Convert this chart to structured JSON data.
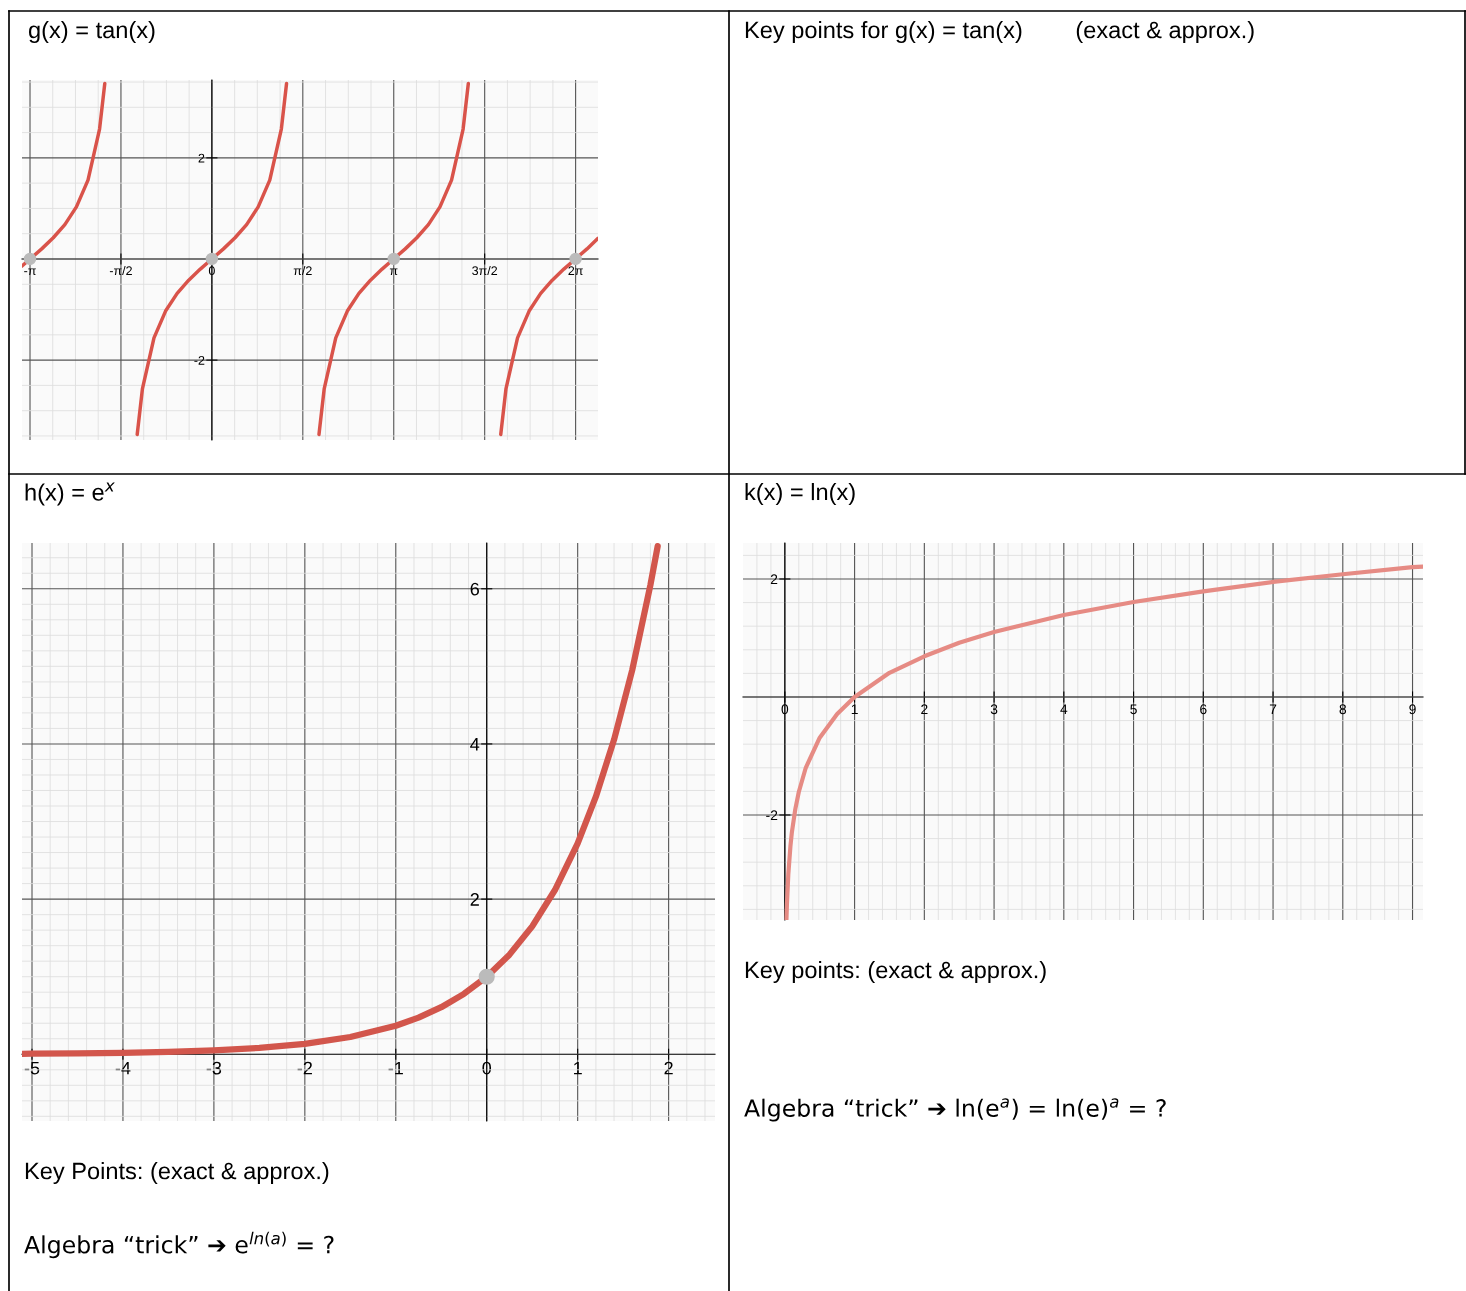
{
  "chart_data": [
    {
      "type": "line",
      "title": "g(x) = tan(x)",
      "annotations": [
        "Key points for g(x) = tan(x)        (exact & approx.)"
      ],
      "xlim": [
        -3.28,
        6.67
      ],
      "ylim": [
        -3.58,
        3.54
      ],
      "xticks": [
        {
          "value": -3.1416,
          "label": "-π"
        },
        {
          "value": -1.5708,
          "label": "-π/2"
        },
        0,
        {
          "value": 1.5708,
          "label": "π/2"
        },
        {
          "value": 3.1416,
          "label": "π"
        },
        {
          "value": 4.7124,
          "label": "3π/2"
        },
        {
          "value": 6.2832,
          "label": "2π"
        }
      ],
      "yticks": [
        -2,
        2
      ],
      "grid": true,
      "series": [
        {
          "color": "#d9534a",
          "x": [
            -3.28,
            -3.14,
            -2.94,
            -2.74,
            -2.54,
            -2.34,
            -2.14,
            -1.94,
            -1.85,
            -1.57,
            -1.29,
            -1.2,
            -1.0,
            -0.8,
            -0.6,
            -0.4,
            -0.2,
            0,
            0.2,
            0.4,
            0.6,
            0.8,
            1.0,
            1.2,
            1.29,
            1.57,
            1.85,
            1.94,
            2.14,
            2.34,
            2.54,
            2.74,
            2.94,
            3.14,
            3.34,
            3.54,
            3.74,
            3.94,
            4.14,
            4.34,
            4.43,
            4.71,
            4.99,
            5.08,
            5.28,
            5.48,
            5.68,
            5.88,
            6.08,
            6.28,
            6.48,
            6.67
          ],
          "values": [
            -0.14,
            0,
            0.2,
            0.42,
            0.68,
            1.03,
            1.56,
            2.57,
            3.47,
            null,
            -3.47,
            -2.57,
            -1.56,
            -1.03,
            -0.68,
            -0.42,
            -0.2,
            0,
            0.2,
            0.42,
            0.68,
            1.03,
            1.56,
            2.57,
            3.47,
            null,
            -3.47,
            -2.57,
            -1.56,
            -1.03,
            -0.68,
            -0.42,
            -0.2,
            0,
            0.2,
            0.42,
            0.68,
            1.03,
            1.56,
            2.57,
            3.47,
            null,
            -3.47,
            -2.57,
            -1.56,
            -1.03,
            -0.68,
            -0.42,
            -0.2,
            0,
            0.2,
            0.41
          ]
        },
        {
          "type": "scatter",
          "color": "#bbbbbb",
          "x": [
            -3.1416,
            0,
            3.1416,
            6.2832
          ],
          "values": [
            0,
            0,
            0,
            0
          ]
        }
      ]
    },
    {
      "type": "line",
      "title": "h(x) = e$^{x}$",
      "annotations": [
        "Key Points: (exact & approx.)",
        "Algebra “trick” ➔ e$^{ln(a)}$ = ?"
      ],
      "xlim": [
        -5.11,
        2.51
      ],
      "ylim": [
        -0.86,
        6.59
      ],
      "xticks": [
        -5,
        -4,
        -3,
        -2,
        -1,
        0,
        1,
        2
      ],
      "yticks": [
        2,
        4,
        6
      ],
      "grid": true,
      "series": [
        {
          "color": "#d2564c",
          "x": [
            -5.11,
            -5,
            -4.5,
            -4,
            -3.5,
            -3,
            -2.5,
            -2,
            -1.5,
            -1,
            -0.75,
            -0.5,
            -0.25,
            0,
            0.25,
            0.5,
            0.75,
            1,
            1.2,
            1.4,
            1.6,
            1.8,
            1.88
          ],
          "values": [
            0.006,
            0.007,
            0.011,
            0.018,
            0.03,
            0.05,
            0.082,
            0.135,
            0.223,
            0.368,
            0.472,
            0.607,
            0.779,
            1,
            1.284,
            1.649,
            2.117,
            2.718,
            3.32,
            4.055,
            4.953,
            6.05,
            6.55
          ]
        },
        {
          "type": "scatter",
          "color": "#bbbbbb",
          "x": [
            0
          ],
          "values": [
            1
          ]
        }
      ]
    },
    {
      "type": "line",
      "title": "k(x) = ln(x)",
      "annotations": [
        "Key points: (exact & approx.)",
        "Algebra “trick” ➔ ln(e$^{a}$) = ln(e)$^{a}$ = ?"
      ],
      "xlim": [
        -0.6,
        9.15
      ],
      "ylim": [
        -3.78,
        2.61
      ],
      "xticks": [
        0,
        1,
        2,
        3,
        4,
        5,
        6,
        7,
        8,
        9
      ],
      "yticks": [
        -2,
        2
      ],
      "grid": true,
      "series": [
        {
          "color": "#e68b84",
          "x": [
            0.023,
            0.03,
            0.05,
            0.08,
            0.1,
            0.15,
            0.2,
            0.3,
            0.5,
            0.75,
            1,
            1.5,
            2,
            2.5,
            3,
            4,
            5,
            6,
            7,
            8,
            9,
            9.15
          ],
          "values": [
            -3.77,
            -3.51,
            -3.0,
            -2.53,
            -2.3,
            -1.9,
            -1.61,
            -1.2,
            -0.69,
            -0.29,
            0,
            0.41,
            0.69,
            0.92,
            1.1,
            1.39,
            1.61,
            1.79,
            1.95,
            2.08,
            2.2,
            2.21
          ]
        }
      ]
    }
  ]
}
